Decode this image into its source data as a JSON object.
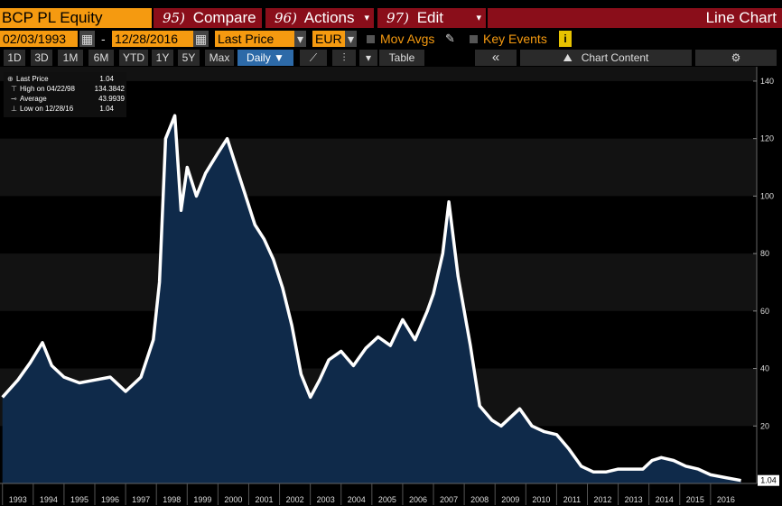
{
  "header": {
    "ticker": "BCP PL Equity",
    "menus": [
      {
        "num": "95)",
        "label": "Compare"
      },
      {
        "num": "96)",
        "label": "Actions"
      },
      {
        "num": "97)",
        "label": "Edit"
      }
    ],
    "chart_name": "Line Chart"
  },
  "toolbar": {
    "start_date": "02/03/1993",
    "date_sep": "-",
    "end_date": "12/28/2016",
    "field": "Last Price",
    "currency": "EUR",
    "mov_avgs": "Mov Avgs",
    "key_events": "Key Events",
    "info": "i"
  },
  "periods": {
    "items": [
      "1D",
      "3D",
      "1M",
      "6M",
      "YTD",
      "1Y",
      "5Y",
      "Max"
    ],
    "frequency": "Daily ▼",
    "table": "Table",
    "collapse": "«",
    "chart_content": "Chart Content"
  },
  "colors": {
    "orange": "#f59a10",
    "menu_red": "#8a0e1a",
    "area_fill": "#0f2a4a",
    "line": "#ffffff",
    "selected_blue": "#2d6aa8"
  },
  "legend": {
    "rows": [
      {
        "label": "Last Price",
        "value": "1.04"
      },
      {
        "label": "High on 04/22/98",
        "value": "134.3842"
      },
      {
        "label": "Average",
        "value": "43.9939"
      },
      {
        "label": "Low on 12/28/16",
        "value": "1.04"
      }
    ]
  },
  "chart_data": {
    "type": "area",
    "title": "",
    "xlabel": "",
    "ylabel": "",
    "x": [
      1993.0,
      1993.5,
      1993.9,
      1994.3,
      1994.6,
      1995.0,
      1995.5,
      1996.0,
      1996.5,
      1997.0,
      1997.5,
      1997.9,
      1998.1,
      1998.3,
      1998.6,
      1998.8,
      1999.0,
      1999.3,
      1999.6,
      2000.0,
      2000.3,
      2000.6,
      2000.9,
      2001.2,
      2001.5,
      2001.8,
      2002.1,
      2002.4,
      2002.7,
      2003.0,
      2003.3,
      2003.6,
      2004.0,
      2004.4,
      2004.8,
      2005.2,
      2005.6,
      2006.0,
      2006.4,
      2006.8,
      2007.0,
      2007.3,
      2007.5,
      2007.8,
      2008.2,
      2008.5,
      2008.9,
      2009.2,
      2009.5,
      2009.8,
      2010.2,
      2010.6,
      2011.0,
      2011.4,
      2011.8,
      2012.2,
      2012.6,
      2013.0,
      2013.4,
      2013.8,
      2014.1,
      2014.4,
      2014.8,
      2015.2,
      2015.6,
      2016.0,
      2016.5,
      2016.99
    ],
    "y": [
      30,
      36,
      42,
      49,
      41,
      37,
      35,
      36,
      37,
      32,
      37,
      50,
      70,
      120,
      128,
      95,
      110,
      100,
      108,
      115,
      120,
      110,
      100,
      90,
      85,
      78,
      68,
      55,
      38,
      30,
      36,
      43,
      46,
      41,
      47,
      51,
      48,
      57,
      50,
      60,
      66,
      80,
      98,
      72,
      48,
      27,
      22,
      20,
      23,
      26,
      20,
      18,
      17,
      12,
      6,
      4,
      4,
      5,
      5,
      5,
      8,
      9,
      8,
      6,
      5,
      3,
      2,
      1.04
    ],
    "ylim": [
      0,
      145
    ],
    "yticks": [
      20,
      40,
      60,
      80,
      100,
      120,
      140
    ],
    "xlim": [
      1992.92,
      2017.5
    ],
    "xticks": [
      1993,
      1994,
      1995,
      1996,
      1997,
      1998,
      1999,
      2000,
      2001,
      2002,
      2003,
      2004,
      2005,
      2006,
      2007,
      2008,
      2009,
      2010,
      2011,
      2012,
      2013,
      2014,
      2015,
      2016
    ],
    "last_value_label": "1.04",
    "grid": false,
    "legend_placement": "top-left"
  }
}
